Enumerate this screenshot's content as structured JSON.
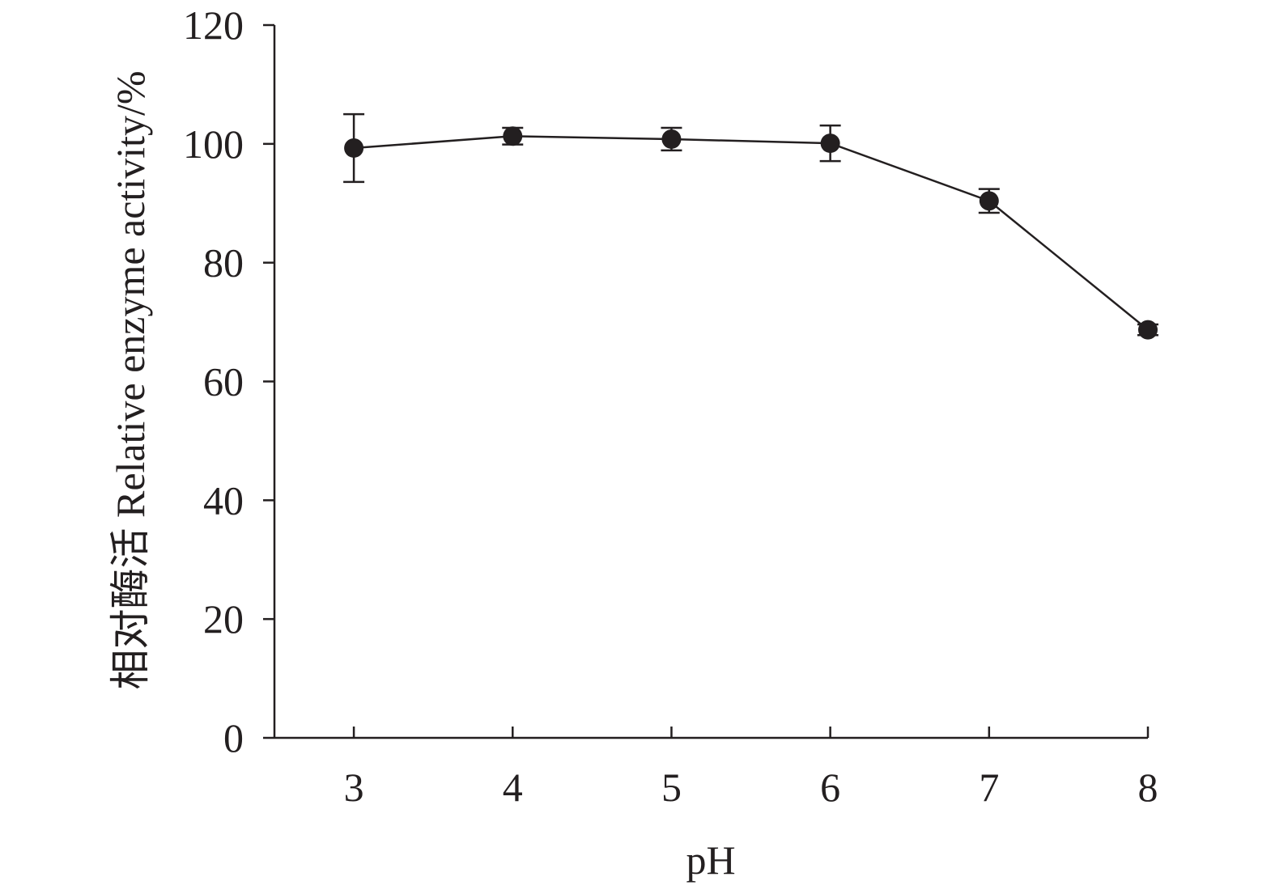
{
  "chart_data": {
    "type": "line",
    "title": "",
    "xlabel": "pH",
    "ylabel": "相对酶活 Relative enzyme activity/%",
    "x": [
      3,
      4,
      5,
      6,
      7,
      8
    ],
    "x_tick_labels": [
      "3",
      "4",
      "5",
      "6",
      "7",
      "8"
    ],
    "y_tick_labels": [
      "0",
      "20",
      "40",
      "60",
      "80",
      "100",
      "120"
    ],
    "y_ticks": [
      0,
      20,
      40,
      60,
      80,
      100,
      120
    ],
    "ylim": [
      0,
      120
    ],
    "xlim": [
      2.5,
      8
    ],
    "grid": false,
    "legend": "none",
    "series": [
      {
        "values": [
          99.3,
          101.3,
          100.8,
          100.1,
          90.4,
          68.7
        ],
        "error": [
          5.7,
          1.4,
          1.9,
          3.0,
          2.0,
          0.9
        ],
        "marker": "filled-circle",
        "color": "#231f20"
      }
    ]
  }
}
